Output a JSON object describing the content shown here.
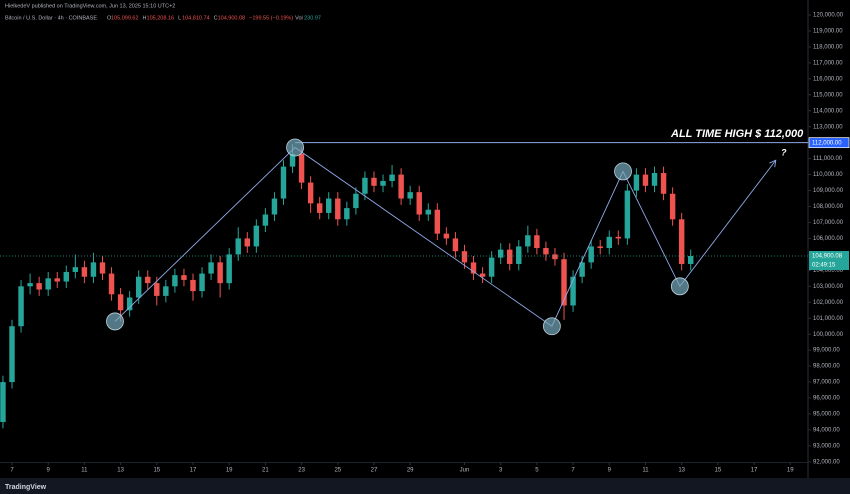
{
  "header": {
    "publisher": "HielkedeV published on TradingView.com, Jun 13, 2025 15:10 UTC+2",
    "symbol": "Bitcoin / U.S. Dollar · 4h · COINBASE",
    "ohlc": [
      {
        "key": "O",
        "value": "105,099.62"
      },
      {
        "key": "H",
        "value": "105,208.16"
      },
      {
        "key": "L",
        "value": "104,810.74"
      },
      {
        "key": "C",
        "value": "104,900.08"
      }
    ],
    "change": "−199.55 (−0.19%)",
    "volume_key": "Vol",
    "volume": "230.97"
  },
  "footer": {
    "brand": "TradingView"
  },
  "chart_data": {
    "type": "candlestick",
    "x": [
      -0.5,
      0,
      0.5,
      1,
      1.5,
      2,
      2.5,
      3,
      3.5,
      4,
      4.5,
      5,
      5.5,
      6,
      6.5,
      7,
      7.5,
      8,
      8.5,
      9,
      9.5,
      10,
      10.5,
      11,
      11.5,
      12,
      12.5,
      13,
      13.5,
      14,
      14.5,
      15,
      15.5,
      16,
      16.5,
      17,
      17.5,
      18,
      18.5,
      19,
      19.5,
      20,
      20.5,
      21,
      21.5,
      22,
      22.5,
      23,
      23.5,
      24,
      24.5,
      25,
      25.5,
      26,
      26.5,
      27,
      27.5,
      28,
      28.5,
      29,
      29.5,
      30,
      30.5,
      31,
      31.5,
      32,
      32.5,
      33,
      33.5,
      34,
      34.5,
      35,
      35.5,
      36,
      36.5,
      37,
      37.5
    ],
    "open": [
      94500,
      97000,
      100500,
      103000,
      103200,
      102800,
      103500,
      103300,
      103900,
      104200,
      103600,
      104500,
      103800,
      102500,
      101500,
      102300,
      103600,
      103200,
      102400,
      103000,
      103700,
      103400,
      102700,
      103800,
      104500,
      103200,
      105000,
      106000,
      105500,
      106800,
      107500,
      108500,
      110500,
      111300,
      109500,
      108200,
      107600,
      108500,
      107200,
      107900,
      108800,
      109800,
      109300,
      109600,
      110000,
      108500,
      108900,
      107500,
      107800,
      106300,
      106000,
      105200,
      104500,
      103800,
      103600,
      104800,
      105300,
      104400,
      105500,
      106200,
      105400,
      105000,
      104700,
      101800,
      103600,
      104500,
      105500,
      105400,
      106100,
      106000,
      109000,
      110000,
      109300,
      110100,
      108800,
      107200,
      104400
    ],
    "high": [
      97400,
      100900,
      103400,
      103800,
      103600,
      103900,
      103900,
      104300,
      105000,
      104600,
      105100,
      104900,
      104200,
      102900,
      102700,
      104000,
      104000,
      103600,
      103400,
      104100,
      104100,
      103800,
      104200,
      105000,
      104900,
      105400,
      106700,
      106400,
      107200,
      107900,
      108900,
      110900,
      111900,
      111700,
      109900,
      108600,
      108900,
      108900,
      108300,
      109200,
      110200,
      110200,
      110000,
      110600,
      110400,
      109300,
      109300,
      108200,
      108200,
      106700,
      106400,
      105600,
      104900,
      104200,
      105200,
      105700,
      105700,
      105900,
      106800,
      106600,
      105800,
      105400,
      105100,
      104000,
      104900,
      105900,
      105900,
      106500,
      106500,
      109400,
      110400,
      110400,
      110500,
      110500,
      109200,
      107600,
      105300
    ],
    "low": [
      94100,
      96600,
      100100,
      102500,
      102400,
      102400,
      102900,
      102900,
      103500,
      103200,
      103200,
      103400,
      102100,
      100800,
      101100,
      101900,
      102800,
      101800,
      102000,
      102600,
      103000,
      102100,
      102300,
      103400,
      102300,
      102800,
      104600,
      105100,
      105100,
      106400,
      107100,
      108100,
      110100,
      109100,
      107600,
      107200,
      107200,
      106800,
      106800,
      107500,
      108400,
      108900,
      108900,
      109200,
      108100,
      108100,
      107100,
      107100,
      105900,
      105600,
      104800,
      104100,
      103400,
      103200,
      103200,
      104400,
      104000,
      104000,
      105100,
      105000,
      104600,
      104300,
      100900,
      101400,
      103200,
      104100,
      105000,
      105000,
      105600,
      105600,
      108600,
      108900,
      108900,
      108400,
      106800,
      104000,
      104000
    ],
    "close": [
      97000,
      100500,
      103000,
      103200,
      102800,
      103500,
      103300,
      103900,
      104200,
      103600,
      104500,
      103800,
      102500,
      101500,
      102300,
      103600,
      103200,
      102400,
      103000,
      103700,
      103400,
      102700,
      103800,
      104500,
      103200,
      105000,
      106000,
      105500,
      106800,
      107500,
      108500,
      110500,
      111300,
      109500,
      108200,
      107600,
      108500,
      107200,
      107900,
      108800,
      109800,
      109300,
      109600,
      110000,
      108500,
      108900,
      107500,
      107800,
      106300,
      106000,
      105200,
      104500,
      103800,
      103600,
      104800,
      105300,
      104400,
      105500,
      106200,
      105400,
      105000,
      104700,
      101800,
      103600,
      104500,
      105500,
      105400,
      106100,
      106000,
      109000,
      110000,
      109300,
      110100,
      108800,
      107200,
      104400,
      104900
    ],
    "colors": {
      "up": "#26a69a",
      "down": "#ef5350"
    },
    "xlim": [
      -0.663,
      43.98
    ],
    "xticks": [
      {
        "value": 0,
        "label": "7"
      },
      {
        "value": 2,
        "label": "9"
      },
      {
        "value": 4,
        "label": "11"
      },
      {
        "value": 6,
        "label": "13"
      },
      {
        "value": 8,
        "label": "15"
      },
      {
        "value": 10,
        "label": "17"
      },
      {
        "value": 12,
        "label": "19"
      },
      {
        "value": 14,
        "label": "21"
      },
      {
        "value": 16,
        "label": "23"
      },
      {
        "value": 18,
        "label": "25"
      },
      {
        "value": 20,
        "label": "27"
      },
      {
        "value": 22,
        "label": "29"
      },
      {
        "value": 25,
        "label": "Jun"
      },
      {
        "value": 27,
        "label": "3"
      },
      {
        "value": 29,
        "label": "5"
      },
      {
        "value": 31,
        "label": "7"
      },
      {
        "value": 33,
        "label": "9"
      },
      {
        "value": 35,
        "label": "11"
      },
      {
        "value": 37,
        "label": "13"
      },
      {
        "value": 39,
        "label": "15"
      },
      {
        "value": 41,
        "label": "17"
      },
      {
        "value": 43,
        "label": "19"
      }
    ],
    "ylim": [
      90990,
      120940
    ],
    "yticks": [
      {
        "value": 92000,
        "label": "92,000.00"
      },
      {
        "value": 93000,
        "label": "93,000.00"
      },
      {
        "value": 94000,
        "label": "94,000.00"
      },
      {
        "value": 95000,
        "label": "95,000.00"
      },
      {
        "value": 96000,
        "label": "96,000.00"
      },
      {
        "value": 97000,
        "label": "97,000.00"
      },
      {
        "value": 98000,
        "label": "98,000.00"
      },
      {
        "value": 99000,
        "label": "99,000.00"
      },
      {
        "value": 100000,
        "label": "100,000.00"
      },
      {
        "value": 101000,
        "label": "101,000.00"
      },
      {
        "value": 102000,
        "label": "102,000.00"
      },
      {
        "value": 103000,
        "label": "103,000.00"
      },
      {
        "value": 104000,
        "label": "104,000.00"
      },
      {
        "value": 105000,
        "label": "105,000.00"
      },
      {
        "value": 106000,
        "label": "106,000.00"
      },
      {
        "value": 107000,
        "label": "107,000.00"
      },
      {
        "value": 108000,
        "label": "108,000.00"
      },
      {
        "value": 109000,
        "label": "109,000.00"
      },
      {
        "value": 110000,
        "label": "110,000.00"
      },
      {
        "value": 111000,
        "label": "111,000.00"
      },
      {
        "value": 112000,
        "label": "112,000.00"
      },
      {
        "value": 113000,
        "label": "113,000.00"
      },
      {
        "value": 114000,
        "label": "114,000.00"
      },
      {
        "value": 115000,
        "label": "115,000.00"
      },
      {
        "value": 116000,
        "label": "116,000.00"
      },
      {
        "value": 117000,
        "label": "117,000.00"
      },
      {
        "value": 118000,
        "label": "118,000.00"
      },
      {
        "value": 119000,
        "label": "119,000.00"
      },
      {
        "value": 120000,
        "label": "120,000.00"
      }
    ],
    "grid": false,
    "level": {
      "value": 112000,
      "label": "112,000.00",
      "start": 15.64,
      "color": "#8fa9e6"
    },
    "last_price": {
      "value": 104900.08,
      "label": "104,900.08",
      "countdown": "02:49:15"
    },
    "pattern": {
      "x": [
        5.69,
        15.64,
        29.83,
        33.76,
        36.9,
        42.2
      ],
      "y": [
        100800,
        111700,
        100500,
        110200,
        103000,
        110900
      ],
      "circled": [
        true,
        true,
        true,
        true,
        true,
        false
      ],
      "color": "#8fa9e6"
    },
    "annotations": [
      {
        "text": "ALL TIME HIGH $ 112,000"
      },
      {
        "text": "?"
      }
    ]
  }
}
